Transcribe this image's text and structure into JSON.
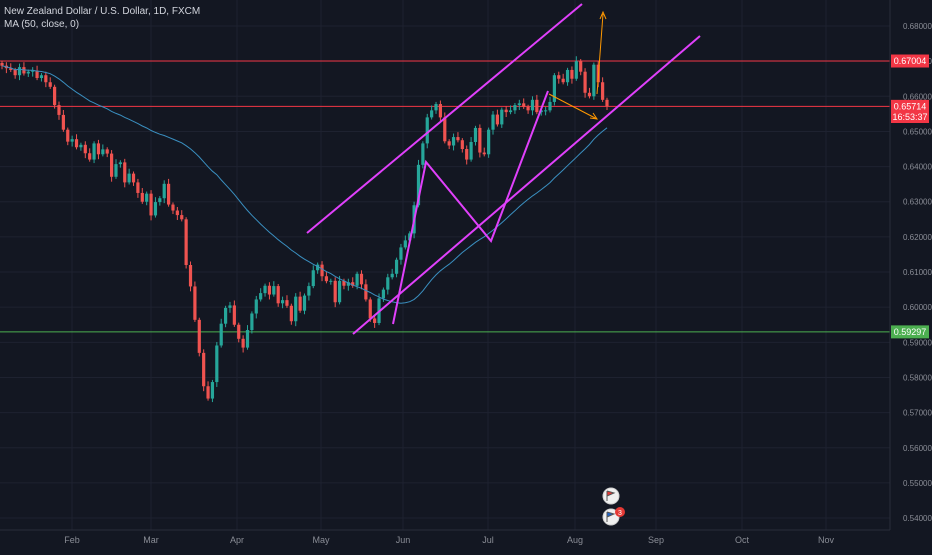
{
  "header": {
    "symbol_title": "New Zealand Dollar / U.S. Dollar, 1D, FXCM",
    "indicator_label": "MA (50, close, 0)"
  },
  "colors": {
    "background": "#131722",
    "grid": "#1e2230",
    "up_candle": "#26a69a",
    "down_candle": "#ef5350",
    "ma_line": "#3a8fc0",
    "channel": "#e040fb",
    "resistance": "#f23645",
    "support": "#4caf50",
    "projection": "#ff9800",
    "axis_text": "#8a8d96"
  },
  "chart_data": {
    "type": "candlestick",
    "title": "New Zealand Dollar / U.S. Dollar, 1D, FXCM",
    "xlabel": "",
    "ylabel": "",
    "x_tick_labels": [
      "Feb",
      "Mar",
      "Apr",
      "May",
      "Jun",
      "Jul",
      "Aug",
      "Sep",
      "Oct",
      "Nov"
    ],
    "y_tick_labels": [
      "0.54000",
      "0.55000",
      "0.56000",
      "0.57000",
      "0.58000",
      "0.59000",
      "0.60000",
      "0.61000",
      "0.62000",
      "0.63000",
      "0.64000",
      "0.65000",
      "0.66000",
      "0.67000",
      "0.68000"
    ],
    "ylim": [
      0.5366,
      0.6874
    ],
    "grid": true,
    "horizontal_levels": [
      {
        "label": "0.67004",
        "value": 0.67004,
        "color": "#f23645"
      },
      {
        "label": "0.65714",
        "value": 0.65714,
        "color": "#f23645"
      },
      {
        "label": "0.59297",
        "value": 0.59297,
        "color": "#4caf50"
      }
    ],
    "countdown_label": "16:53:37",
    "indicator": {
      "name": "MA (50, close, 0)"
    },
    "x_note": "candle closes in chronological order, approx. one per trading day, Jan through mid-Aug",
    "closes": [
      0.6687,
      0.668,
      0.6675,
      0.666,
      0.6683,
      0.6665,
      0.667,
      0.6673,
      0.6652,
      0.666,
      0.664,
      0.6627,
      0.6575,
      0.6547,
      0.6505,
      0.6471,
      0.6478,
      0.6455,
      0.6462,
      0.6438,
      0.642,
      0.6466,
      0.6435,
      0.6449,
      0.6437,
      0.6371,
      0.6407,
      0.6412,
      0.6355,
      0.638,
      0.6355,
      0.6325,
      0.63,
      0.6323,
      0.6261,
      0.6299,
      0.631,
      0.6351,
      0.6292,
      0.6275,
      0.6262,
      0.625,
      0.612,
      0.6059,
      0.5964,
      0.587,
      0.5775,
      0.574,
      0.5787,
      0.5891,
      0.5953,
      0.5998,
      0.6005,
      0.595,
      0.591,
      0.5885,
      0.5935,
      0.5982,
      0.6022,
      0.604,
      0.6061,
      0.6036,
      0.606,
      0.6011,
      0.602,
      0.6004,
      0.596,
      0.603,
      0.599,
      0.6033,
      0.606,
      0.6105,
      0.6121,
      0.6088,
      0.6074,
      0.6075,
      0.6014,
      0.6075,
      0.6061,
      0.6071,
      0.6061,
      0.6095,
      0.6065,
      0.6022,
      0.5968,
      0.5955,
      0.6025,
      0.605,
      0.6085,
      0.6095,
      0.6135,
      0.617,
      0.619,
      0.621,
      0.629,
      0.6405,
      0.6466,
      0.654,
      0.656,
      0.6578,
      0.654,
      0.6472,
      0.646,
      0.6484,
      0.6475,
      0.645,
      0.642,
      0.647,
      0.651,
      0.644,
      0.6435,
      0.6505,
      0.6548,
      0.652,
      0.6562,
      0.6555,
      0.656,
      0.6575,
      0.658,
      0.657,
      0.656,
      0.659,
      0.6555,
      0.656,
      0.656,
      0.6584,
      0.666,
      0.665,
      0.664,
      0.6675,
      0.665,
      0.67,
      0.667,
      0.661,
      0.66,
      0.669,
      0.664,
      0.659,
      0.6571
    ]
  },
  "markers": {
    "icon_top": "flag-event-icon",
    "icon_bottom": "flag-event-icon",
    "badge_label": "3"
  }
}
